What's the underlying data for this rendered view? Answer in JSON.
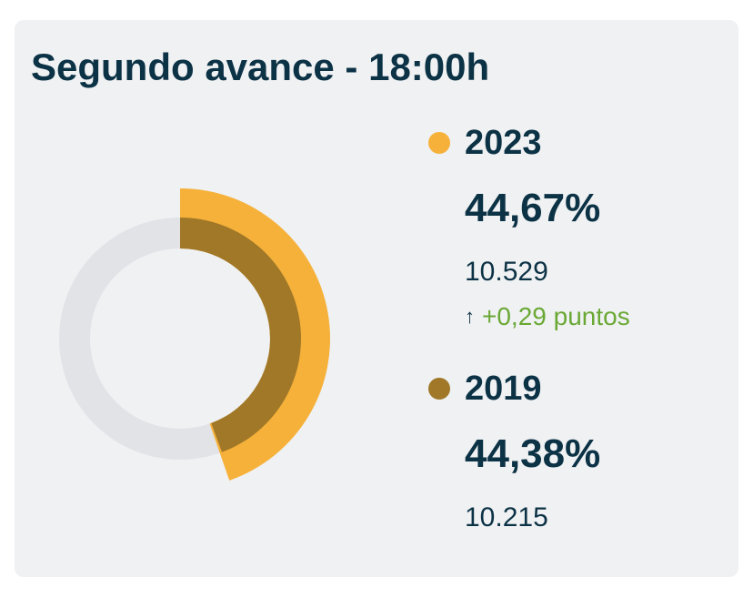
{
  "title": "Segundo avance - 18:00h",
  "colors": {
    "y2023": "#f6b13a",
    "y2019": "#a07828",
    "track": "#e1e3e7",
    "text": "#0c3245",
    "positive": "#6aa834"
  },
  "entries": [
    {
      "year": "2023",
      "percent": "44,67%",
      "votes": "10.529",
      "change": "+0,29 puntos",
      "change_icon": "arrow-up-icon"
    },
    {
      "year": "2019",
      "percent": "44,38%",
      "votes": "10.215"
    }
  ],
  "chart_data": {
    "type": "pie",
    "subtype": "concentric-donut",
    "title": "Segundo avance - 18:00h",
    "series": [
      {
        "name": "2023",
        "value": 44.67,
        "unit": "%",
        "color": "#f6b13a"
      },
      {
        "name": "2019",
        "value": 44.38,
        "unit": "%",
        "color": "#a07828"
      }
    ],
    "max": 100,
    "start": "top",
    "direction": "clockwise"
  }
}
